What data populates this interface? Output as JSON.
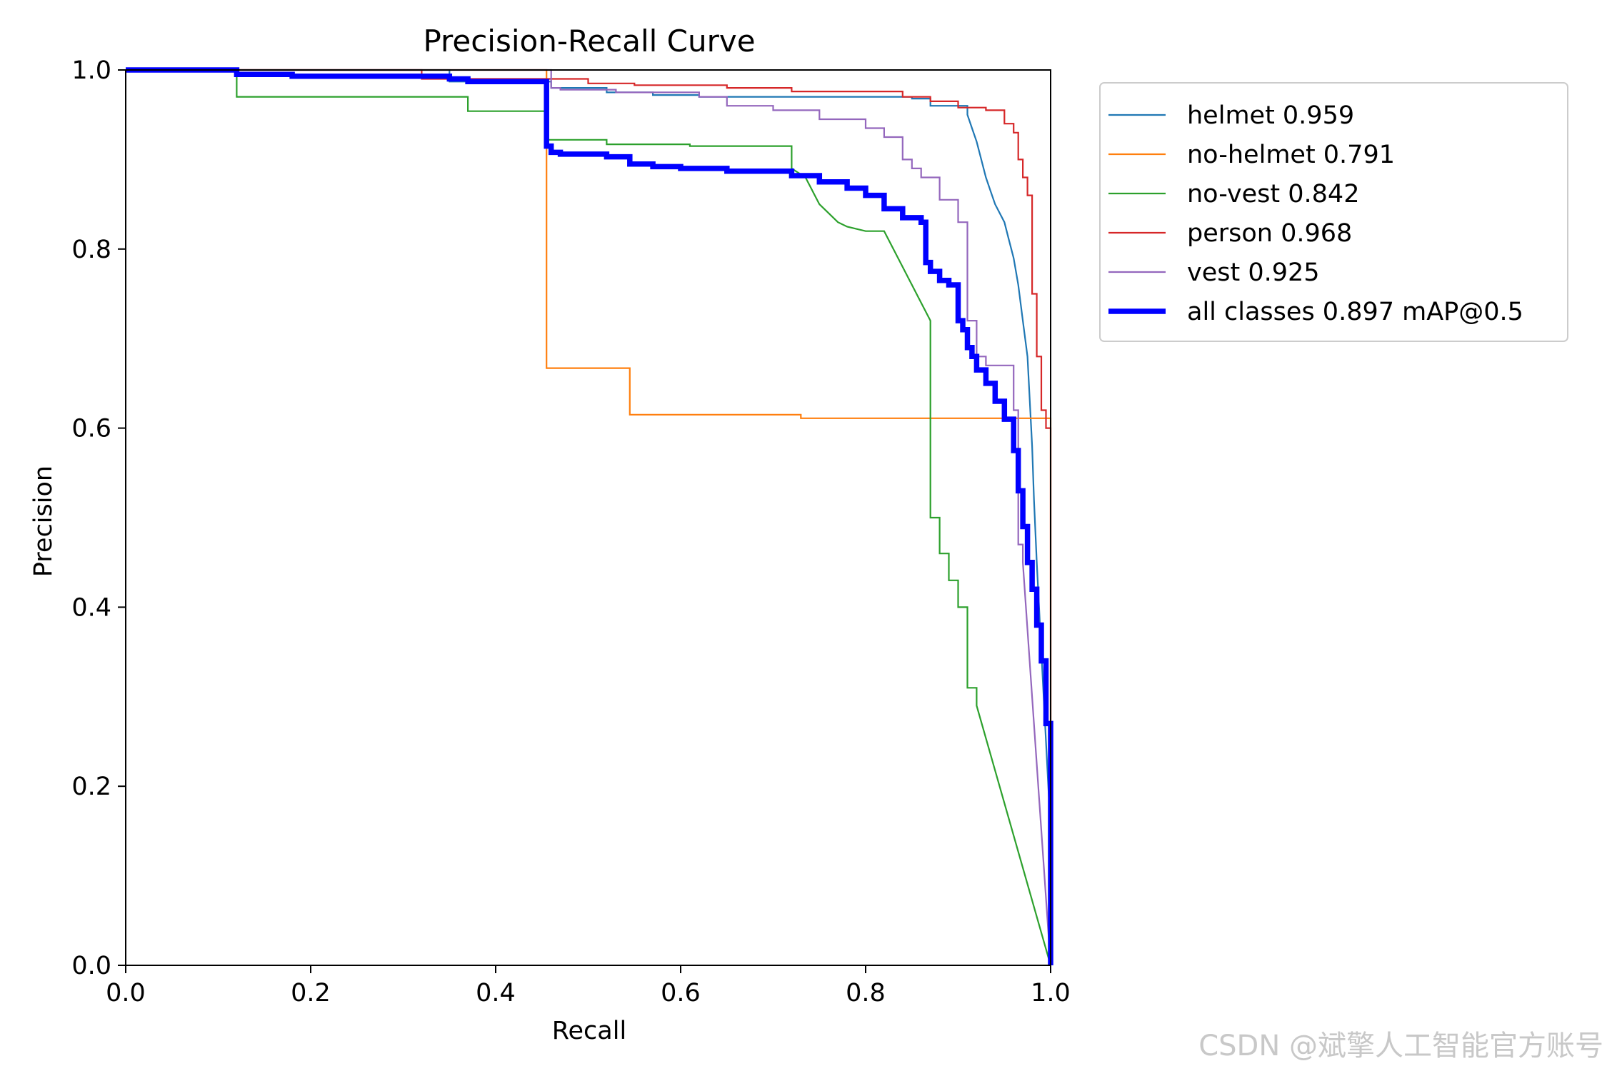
{
  "chart_data": {
    "type": "line",
    "title": "Precision-Recall Curve",
    "xlabel": "Recall",
    "ylabel": "Precision",
    "xlim": [
      0,
      1
    ],
    "ylim": [
      0,
      1
    ],
    "x_ticks": [
      "0.0",
      "0.2",
      "0.4",
      "0.6",
      "0.8",
      "1.0"
    ],
    "y_ticks": [
      "0.0",
      "0.2",
      "0.4",
      "0.6",
      "0.8",
      "1.0"
    ],
    "grid": false,
    "legend_position": "outside-right",
    "series": [
      {
        "name": "helmet 0.959",
        "color": "#1f77b4",
        "line_width": "thin",
        "x": [
          0,
          0.35,
          0.35,
          0.46,
          0.46,
          0.52,
          0.52,
          0.57,
          0.57,
          0.62,
          0.62,
          0.85,
          0.85,
          0.87,
          0.87,
          0.91,
          0.91,
          0.915,
          0.92,
          0.925,
          0.93,
          0.935,
          0.94,
          0.945,
          0.95,
          0.955,
          0.96,
          0.965,
          0.97,
          0.975,
          0.977,
          0.98,
          0.982,
          0.985,
          0.99,
          1.0,
          1.0
        ],
        "y": [
          1.0,
          1.0,
          0.987,
          0.987,
          0.98,
          0.98,
          0.975,
          0.975,
          0.972,
          0.972,
          0.97,
          0.97,
          0.968,
          0.968,
          0.96,
          0.96,
          0.95,
          0.935,
          0.92,
          0.9,
          0.88,
          0.865,
          0.85,
          0.84,
          0.83,
          0.81,
          0.79,
          0.76,
          0.72,
          0.68,
          0.64,
          0.58,
          0.52,
          0.45,
          0.35,
          0.15,
          0.0
        ]
      },
      {
        "name": "no-helmet 0.791",
        "color": "#ff7f0e",
        "line_width": "thin",
        "x": [
          0,
          0.455,
          0.455,
          0.545,
          0.545,
          0.73,
          0.73,
          1.0,
          1.0
        ],
        "y": [
          1.0,
          1.0,
          0.667,
          0.667,
          0.615,
          0.615,
          0.611,
          0.611,
          0.0
        ]
      },
      {
        "name": "no-vest 0.842",
        "color": "#2ca02c",
        "line_width": "thin",
        "x": [
          0,
          0.12,
          0.12,
          0.37,
          0.37,
          0.455,
          0.455,
          0.52,
          0.52,
          0.61,
          0.61,
          0.72,
          0.72,
          0.735,
          0.74,
          0.745,
          0.75,
          0.76,
          0.77,
          0.78,
          0.8,
          0.82,
          0.835,
          0.85,
          0.86,
          0.87,
          0.87,
          0.88,
          0.88,
          0.89,
          0.89,
          0.9,
          0.9,
          0.91,
          0.91,
          0.92,
          0.92,
          0.92,
          1.0
        ],
        "y": [
          1.0,
          1.0,
          0.97,
          0.97,
          0.954,
          0.954,
          0.922,
          0.922,
          0.917,
          0.917,
          0.915,
          0.915,
          0.89,
          0.88,
          0.87,
          0.86,
          0.85,
          0.84,
          0.83,
          0.825,
          0.82,
          0.82,
          0.79,
          0.76,
          0.74,
          0.72,
          0.5,
          0.5,
          0.46,
          0.46,
          0.43,
          0.43,
          0.4,
          0.4,
          0.31,
          0.31,
          0.29,
          0.29,
          0.0
        ]
      },
      {
        "name": "person 0.968",
        "color": "#d62728",
        "line_width": "thin",
        "x": [
          0,
          0.32,
          0.32,
          0.5,
          0.5,
          0.55,
          0.55,
          0.65,
          0.65,
          0.72,
          0.72,
          0.84,
          0.84,
          0.87,
          0.87,
          0.9,
          0.9,
          0.93,
          0.93,
          0.95,
          0.95,
          0.96,
          0.96,
          0.965,
          0.965,
          0.97,
          0.97,
          0.975,
          0.975,
          0.98,
          0.98,
          0.985,
          0.985,
          0.99,
          0.99,
          0.995,
          0.995,
          1.0,
          1.0
        ],
        "y": [
          1.0,
          1.0,
          0.99,
          0.99,
          0.985,
          0.985,
          0.983,
          0.983,
          0.98,
          0.98,
          0.976,
          0.976,
          0.97,
          0.97,
          0.965,
          0.965,
          0.958,
          0.958,
          0.955,
          0.955,
          0.94,
          0.94,
          0.93,
          0.93,
          0.9,
          0.9,
          0.88,
          0.88,
          0.86,
          0.86,
          0.75,
          0.75,
          0.68,
          0.68,
          0.62,
          0.62,
          0.6,
          0.6,
          0.0
        ]
      },
      {
        "name": "vest 0.925",
        "color": "#9467bd",
        "line_width": "thin",
        "x": [
          0,
          0.46,
          0.46,
          0.47,
          0.47,
          0.53,
          0.53,
          0.62,
          0.62,
          0.65,
          0.65,
          0.7,
          0.7,
          0.75,
          0.75,
          0.77,
          0.77,
          0.8,
          0.8,
          0.82,
          0.82,
          0.84,
          0.84,
          0.85,
          0.85,
          0.86,
          0.86,
          0.88,
          0.88,
          0.9,
          0.9,
          0.91,
          0.91,
          0.92,
          0.92,
          0.93,
          0.93,
          0.95,
          0.95,
          0.96,
          0.96,
          0.965,
          0.965,
          0.97,
          0.97,
          1.0
        ],
        "y": [
          1.0,
          1.0,
          0.98,
          0.98,
          0.978,
          0.978,
          0.975,
          0.975,
          0.97,
          0.97,
          0.96,
          0.96,
          0.955,
          0.955,
          0.945,
          0.945,
          0.945,
          0.945,
          0.935,
          0.935,
          0.925,
          0.925,
          0.9,
          0.9,
          0.89,
          0.89,
          0.88,
          0.88,
          0.855,
          0.855,
          0.83,
          0.83,
          0.72,
          0.72,
          0.68,
          0.68,
          0.67,
          0.67,
          0.67,
          0.67,
          0.62,
          0.62,
          0.47,
          0.47,
          0.45,
          0.0
        ]
      },
      {
        "name": "all classes 0.897 mAP@0.5",
        "color": "#0000ff",
        "line_width": "thick",
        "x": [
          0,
          0.12,
          0.12,
          0.18,
          0.18,
          0.35,
          0.35,
          0.37,
          0.37,
          0.455,
          0.455,
          0.46,
          0.46,
          0.47,
          0.47,
          0.52,
          0.52,
          0.545,
          0.545,
          0.57,
          0.57,
          0.6,
          0.6,
          0.65,
          0.65,
          0.72,
          0.72,
          0.75,
          0.75,
          0.78,
          0.78,
          0.8,
          0.8,
          0.82,
          0.82,
          0.84,
          0.84,
          0.86,
          0.86,
          0.865,
          0.865,
          0.87,
          0.87,
          0.88,
          0.88,
          0.89,
          0.89,
          0.9,
          0.9,
          0.905,
          0.905,
          0.91,
          0.91,
          0.915,
          0.915,
          0.92,
          0.92,
          0.93,
          0.93,
          0.94,
          0.94,
          0.95,
          0.95,
          0.96,
          0.96,
          0.965,
          0.965,
          0.97,
          0.97,
          0.975,
          0.975,
          0.98,
          0.98,
          0.985,
          0.985,
          0.99,
          0.99,
          0.995,
          0.995,
          1.0,
          1.0
        ],
        "y": [
          1.0,
          1.0,
          0.995,
          0.995,
          0.993,
          0.993,
          0.99,
          0.99,
          0.987,
          0.987,
          0.915,
          0.915,
          0.908,
          0.908,
          0.906,
          0.906,
          0.903,
          0.903,
          0.895,
          0.895,
          0.892,
          0.892,
          0.89,
          0.89,
          0.887,
          0.887,
          0.882,
          0.882,
          0.875,
          0.875,
          0.868,
          0.868,
          0.86,
          0.86,
          0.845,
          0.845,
          0.835,
          0.835,
          0.83,
          0.83,
          0.785,
          0.785,
          0.775,
          0.775,
          0.765,
          0.765,
          0.76,
          0.76,
          0.72,
          0.72,
          0.71,
          0.71,
          0.69,
          0.69,
          0.68,
          0.68,
          0.665,
          0.665,
          0.65,
          0.65,
          0.63,
          0.63,
          0.61,
          0.61,
          0.575,
          0.575,
          0.53,
          0.53,
          0.49,
          0.49,
          0.45,
          0.45,
          0.42,
          0.42,
          0.38,
          0.38,
          0.34,
          0.34,
          0.27,
          0.27,
          0.0
        ]
      }
    ]
  },
  "watermark": "CSDN @斌擎人工智能官方账号"
}
